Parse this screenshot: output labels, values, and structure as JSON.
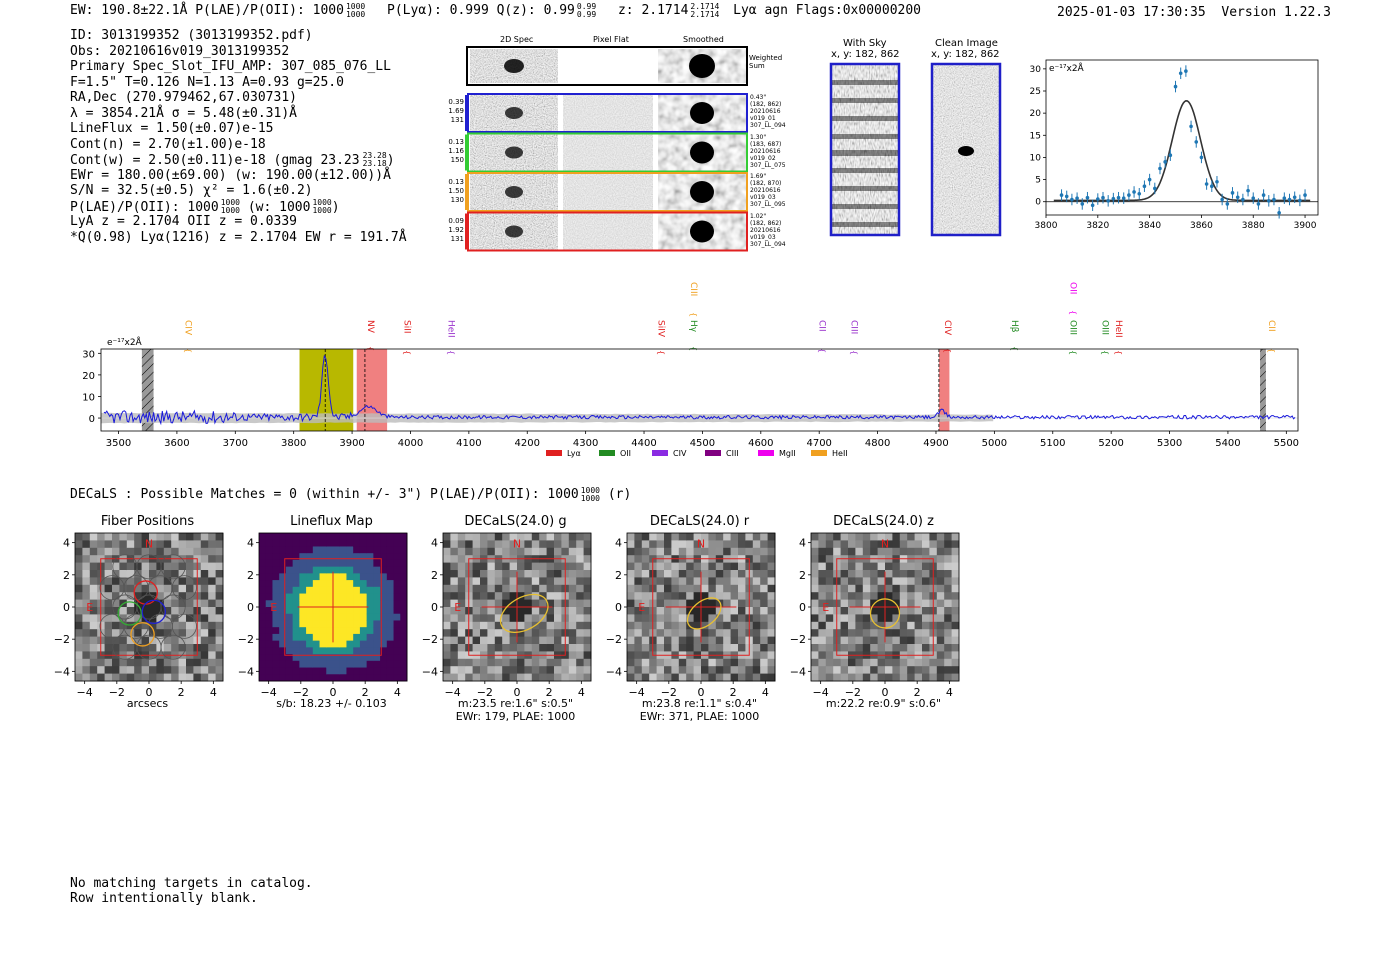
{
  "header": {
    "left": "EW: 190.8±22.1Å  P(LAE)/P(OII): 1000",
    "left_sup": "1000",
    "left_sub": "1000",
    "plya": "P(Lyα): 0.999  Q(z): 0.99",
    "qz_sup": "0.99",
    "qz_sub": "0.99",
    "z": "z: 2.1714",
    "z_sup": "2.1714",
    "z_sub": "2.1714",
    "tail": "Lyα  agn  Flags:0x00000200",
    "datetime": "2025-01-03 17:30:35",
    "version": "Version 1.22.3"
  },
  "info": {
    "lines": [
      "ID: 3013199352 (3013199352.pdf)",
      "Obs: 20210616v019_3013199352",
      "Primary Spec_Slot_IFU_AMP: 307_085_076_LL",
      "F=1.5\"  T=0.126  N=1.13  A=0.93  g=25.0",
      "RA,Dec (270.979462,67.030731)",
      "λ = 3854.21Å  σ = 5.48(±0.31)Å",
      "LineFlux = 1.50(±0.07)e-15",
      "Cont(n) = 2.70(±1.00)e-18",
      "Cont(w) = 2.50(±0.11)e-18 (gmag 23.23",
      "EWr = 180.00(±69.00) (w: 190.00(±12.00))Å",
      "S/N = 32.5(±0.5)  χ² = 1.6(±0.2)",
      "P(LAE)/P(OII): 1000",
      "LyA z = 2.1704  OII z = 0.0339",
      "*Q(0.98) Lyα(1216) z = 2.1704  EW r = 191.7Å"
    ],
    "gmag_sup": "23.28",
    "gmag_sub": "23.18",
    "plae_sup": "1000",
    "plae_sub": "1000",
    "plae_tail": "(w: 1000",
    "plae_w_sup": "1000",
    "plae_w_sub": "1000"
  },
  "cutouts": {
    "col_headers": [
      "2D Spec",
      "Pixel Flat",
      "Smoothed"
    ],
    "weighted_label": "Weighted\nSum",
    "rows": [
      {
        "left": [
          "0.39",
          "1.69",
          "131"
        ],
        "right": [
          "0.43\"",
          "(182, 862)",
          "20210616",
          "v019_01",
          "307_LL_094"
        ],
        "color": "#2020d0"
      },
      {
        "left": [
          "0.13",
          "1.16",
          "150"
        ],
        "right": [
          "1.30\"",
          "(183, 687)",
          "20210616",
          "v019_02",
          "307_LL_075"
        ],
        "color": "#33cc33"
      },
      {
        "left": [
          "0.13",
          "1.50",
          "130"
        ],
        "right": [
          "1.69\"",
          "(182, 870)",
          "20210616",
          "v019_03",
          "307_LL_095"
        ],
        "color": "#f0a020"
      },
      {
        "left": [
          "0.09",
          "1.92",
          "131"
        ],
        "right": [
          "1.02\"",
          "(182, 862)",
          "20210616",
          "v019_03",
          "307_LL_094"
        ],
        "color": "#e02020"
      }
    ]
  },
  "sky": {
    "with_sky_title": "With Sky",
    "with_sky_xy": "x, y: 182, 862",
    "clean_title": "Clean Image",
    "clean_xy": "x, y: 182, 862"
  },
  "fit_chart": {
    "type": "scatter",
    "unit_label": "e⁻¹⁷x2Å",
    "xlim": [
      3800,
      3905
    ],
    "ylim": [
      -3,
      32
    ],
    "xticks": [
      3800,
      3820,
      3840,
      3860,
      3880,
      3900
    ],
    "yticks": [
      0,
      5,
      10,
      15,
      20,
      25,
      30
    ],
    "model": {
      "amp": 22.5,
      "center": 3854.2,
      "sigma": 5.48,
      "offset": 0.3
    },
    "x": [
      3806,
      3808,
      3810,
      3812,
      3814,
      3816,
      3818,
      3820,
      3822,
      3824,
      3826,
      3828,
      3830,
      3832,
      3834,
      3836,
      3838,
      3840,
      3842,
      3844,
      3846,
      3848,
      3850,
      3852,
      3854,
      3856,
      3858,
      3860,
      3862,
      3864,
      3866,
      3868,
      3870,
      3872,
      3874,
      3876,
      3878,
      3880,
      3882,
      3884,
      3886,
      3888,
      3890,
      3892,
      3894,
      3896,
      3898,
      3900
    ],
    "y": [
      1.5,
      1.2,
      0.5,
      0.8,
      -0.5,
      0.9,
      -0.8,
      0.6,
      0.9,
      0.2,
      0.7,
      0.9,
      0.8,
      1.5,
      2.2,
      1.8,
      3.5,
      5.0,
      3.0,
      7.5,
      9.0,
      10.5,
      26.0,
      29.0,
      29.5,
      17.0,
      13.5,
      10.0,
      4.0,
      3.5,
      4.5,
      0.5,
      -0.5,
      2.0,
      1.0,
      0.5,
      2.5,
      0.8,
      -0.5,
      1.5,
      0.2,
      0.5,
      -2.5,
      0.8,
      0.5,
      1.0,
      0.3,
      1.5
    ]
  },
  "spectrum": {
    "type": "line",
    "unit_label": "e⁻¹⁷x2Å",
    "xlim": [
      3470,
      5520
    ],
    "ylim": [
      -6,
      32
    ],
    "xticks": [
      3500,
      3600,
      3700,
      3800,
      3900,
      4000,
      4100,
      4200,
      4300,
      4400,
      4500,
      4600,
      4700,
      4800,
      4900,
      5000,
      5100,
      5200,
      5300,
      5400,
      5500
    ],
    "yticks": [
      0,
      10,
      20,
      30
    ],
    "highlight_boxes": [
      {
        "x0": 3810,
        "x1": 3902,
        "color": "#b8b800"
      },
      {
        "x0": 3908,
        "x1": 3960,
        "color": "#f08080"
      },
      {
        "x0": 4905,
        "x1": 4923,
        "color": "#f08080"
      }
    ],
    "hatched_boxes": [
      {
        "x0": 3540,
        "x1": 3560
      },
      {
        "x0": 5455,
        "x1": 5465
      }
    ],
    "dashed_lines": [
      3854,
      3922,
      4905
    ],
    "peaks": [
      {
        "center": 3854,
        "sigma": 5.5,
        "amp": 29
      },
      {
        "center": 3928,
        "sigma": 14,
        "amp": 5
      },
      {
        "center": 4910,
        "sigma": 6,
        "amp": 3
      }
    ],
    "line_labels": [
      {
        "label": "CIV",
        "x": 3610,
        "color": "#f0a020",
        "row": 1
      },
      {
        "label": "NV",
        "x": 3922,
        "color": "#e02020",
        "row": 1
      },
      {
        "label": "SiII",
        "x": 3985,
        "color": "#e02020",
        "row": 1
      },
      {
        "label": "HeII",
        "x": 4060,
        "color": "#9932cc",
        "row": 1
      },
      {
        "label": "SiIV",
        "x": 4420,
        "color": "#e02020",
        "row": 1
      },
      {
        "label": "CIII",
        "x": 4475,
        "color": "#f0a020",
        "row": 0
      },
      {
        "label": "Hγ",
        "x": 4475,
        "color": "#228b22",
        "row": 1
      },
      {
        "label": "CII",
        "x": 4695,
        "color": "#9932cc",
        "row": 1
      },
      {
        "label": "CIII",
        "x": 4750,
        "color": "#9932cc",
        "row": 1
      },
      {
        "label": "CIV",
        "x": 4910,
        "color": "#e02020",
        "row": 1
      },
      {
        "label": "Hβ",
        "x": 5025,
        "color": "#228b22",
        "row": 1
      },
      {
        "label": "OII",
        "x": 5125,
        "color": "#ee00ee",
        "row": 0
      },
      {
        "label": "OIII",
        "x": 5125,
        "color": "#228b22",
        "row": 1
      },
      {
        "label": "OIII",
        "x": 5180,
        "color": "#228b22",
        "row": 1
      },
      {
        "label": "HeII",
        "x": 5203,
        "color": "#e02020",
        "row": 1
      },
      {
        "label": "CII",
        "x": 5465,
        "color": "#f0a020",
        "row": 1
      }
    ],
    "legend": [
      {
        "label": "Lyα",
        "color": "#e02020"
      },
      {
        "label": "OII",
        "color": "#228b22"
      },
      {
        "label": "CIV",
        "color": "#8a2be2"
      },
      {
        "label": "CIII",
        "color": "#800080"
      },
      {
        "label": "MgII",
        "color": "#ee00ee"
      },
      {
        "label": "HeII",
        "color": "#f0a020"
      }
    ]
  },
  "decals_header": {
    "text": "DECaLS : Possible Matches = 0 (within +/- 3\")  P(LAE)/P(OII): 1000",
    "sup": "1000",
    "sub": "1000",
    "tail": "(r)"
  },
  "stamps": [
    {
      "title": "Fiber Positions",
      "kind": "fibers",
      "caption": [
        "arcsecs"
      ]
    },
    {
      "title": "Lineflux Map",
      "kind": "flux",
      "caption": [
        "s/b: 18.23 +/- 0.103"
      ]
    },
    {
      "title": "DECaLS(24.0) g",
      "kind": "decals",
      "caption": [
        "m:23.5  re:1.6\"  s:0.5\"",
        "EWr: 179, PLAE: 1000"
      ],
      "ellipse": [
        0.45,
        1.6,
        1.0,
        30
      ]
    },
    {
      "title": "DECaLS(24.0) r",
      "kind": "decals",
      "caption": [
        "m:23.8  re:1.1\"  s:0.4\"",
        "EWr: 371, PLAE: 1000"
      ],
      "ellipse": [
        0.2,
        1.2,
        0.75,
        40
      ]
    },
    {
      "title": "DECaLS(24.0) z",
      "kind": "decals",
      "caption": [
        "m:22.2  re:0.9\"  s:0.6\""
      ],
      "ellipse": [
        0.0,
        0.9,
        0.9,
        0
      ]
    }
  ],
  "stamp_axis": {
    "ticks": [
      -4,
      -2,
      0,
      2,
      4
    ],
    "compass_n": "N",
    "compass_e": "E"
  },
  "footer": {
    "line1": "No matching targets in catalog.",
    "line2": "Row intentionally blank."
  }
}
